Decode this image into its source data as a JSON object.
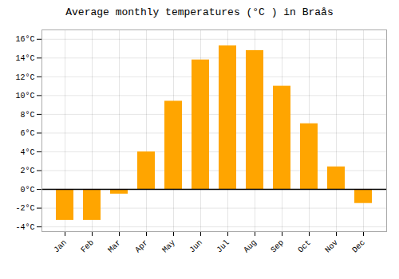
{
  "chart_data": {
    "type": "bar",
    "title": "Average monthly temperatures (°C ) in Braås",
    "categories": [
      "Jan",
      "Feb",
      "Mar",
      "Apr",
      "May",
      "Jun",
      "Jul",
      "Aug",
      "Sep",
      "Oct",
      "Nov",
      "Dec"
    ],
    "values": [
      -3.3,
      -3.3,
      -0.5,
      4.0,
      9.4,
      13.8,
      15.3,
      14.8,
      11.0,
      7.0,
      2.4,
      -1.5
    ],
    "color": "#FFA500",
    "ylim": [
      -4.5,
      17.0
    ],
    "yticks": [
      {
        "value": -4,
        "label": "-4°C"
      },
      {
        "value": -2,
        "label": "-2°C"
      },
      {
        "value": 0,
        "label": "0°C"
      },
      {
        "value": 2,
        "label": "2°C"
      },
      {
        "value": 4,
        "label": "4°C"
      },
      {
        "value": 6,
        "label": "6°C"
      },
      {
        "value": 8,
        "label": "8°C"
      },
      {
        "value": 10,
        "label": "10°C"
      },
      {
        "value": 12,
        "label": "12°C"
      },
      {
        "value": 14,
        "label": "14°C"
      },
      {
        "value": 16,
        "label": "16°C"
      }
    ],
    "grid": true
  }
}
